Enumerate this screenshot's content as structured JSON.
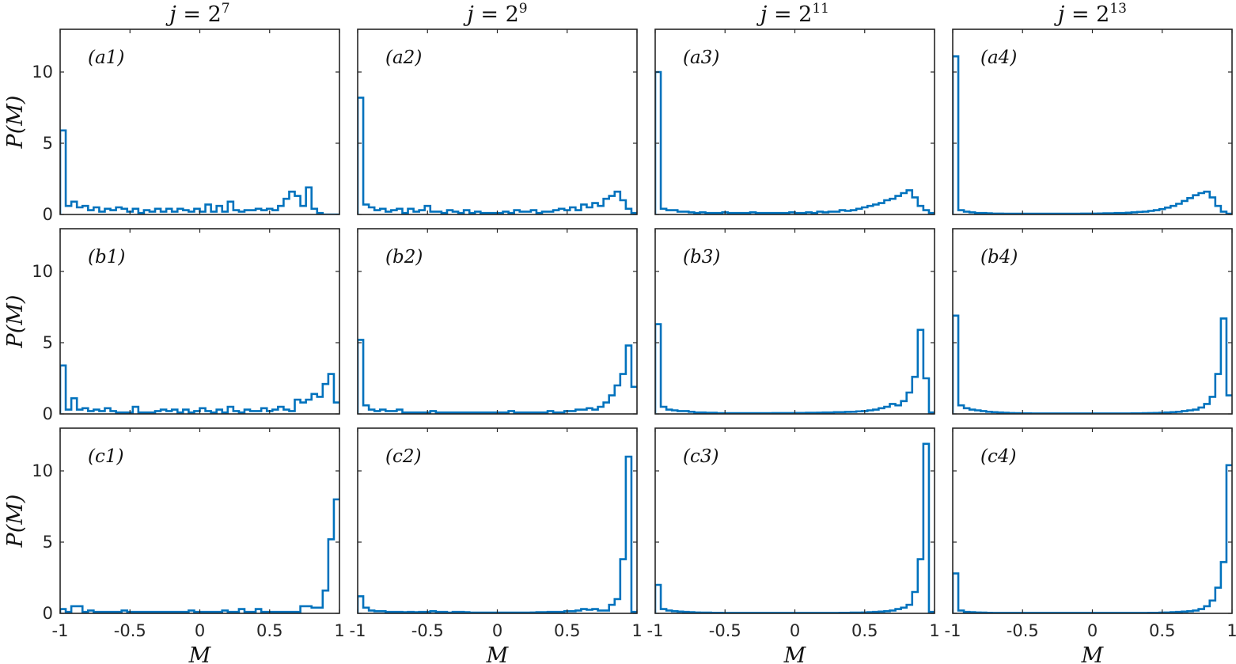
{
  "figure": {
    "column_titles": [
      {
        "base": "j = 2",
        "exponent": "7"
      },
      {
        "base": "j = 2",
        "exponent": "9"
      },
      {
        "base": "j = 2",
        "exponent": "11"
      },
      {
        "base": "j = 2",
        "exponent": "13"
      }
    ],
    "ylabel": "P(M)",
    "xlabel": "M",
    "x_tick_labels": [
      "-1",
      "-0.5",
      "0",
      "0.5",
      "1"
    ],
    "y_tick_labels": [
      "0",
      "5",
      "10"
    ],
    "line_color": "#0072BD"
  },
  "chart_data": [
    {
      "type": "step",
      "panel": "(a1)",
      "row": 0,
      "col": 0,
      "xlim": [
        -1,
        1
      ],
      "ylim": [
        0,
        13
      ],
      "x_start": -1,
      "bin_width": 0.04,
      "values": [
        5.9,
        0.6,
        0.9,
        0.5,
        0.6,
        0.3,
        0.5,
        0.2,
        0.4,
        0.3,
        0.5,
        0.4,
        0.2,
        0.4,
        0.1,
        0.3,
        0.2,
        0.4,
        0.2,
        0.4,
        0.2,
        0.4,
        0.3,
        0.2,
        0.4,
        0.2,
        0.7,
        0.2,
        0.6,
        0.2,
        0.9,
        0.3,
        0.2,
        0.3,
        0.3,
        0.4,
        0.3,
        0.4,
        0.3,
        0.6,
        1.1,
        1.6,
        1.3,
        0.6,
        1.9,
        0.4,
        0.1,
        0,
        0,
        0
      ]
    },
    {
      "type": "step",
      "panel": "(a2)",
      "row": 0,
      "col": 1,
      "xlim": [
        -1,
        1
      ],
      "ylim": [
        0,
        13
      ],
      "x_start": -1,
      "bin_width": 0.04,
      "values": [
        8.2,
        0.7,
        0.5,
        0.3,
        0.4,
        0.2,
        0.3,
        0.4,
        0.1,
        0.4,
        0.2,
        0.3,
        0.6,
        0.2,
        0.2,
        0.1,
        0.3,
        0.2,
        0.1,
        0.3,
        0.1,
        0.2,
        0.1,
        0.1,
        0.1,
        0.1,
        0.2,
        0.1,
        0.3,
        0.2,
        0.2,
        0.3,
        0.1,
        0.2,
        0.2,
        0.3,
        0.4,
        0.3,
        0.5,
        0.3,
        0.7,
        0.5,
        0.8,
        0.6,
        1.1,
        1.3,
        1.6,
        1.0,
        0.4,
        0.1
      ]
    },
    {
      "type": "step",
      "panel": "(a3)",
      "row": 0,
      "col": 2,
      "xlim": [
        -1,
        1
      ],
      "ylim": [
        0,
        13
      ],
      "x_start": -1,
      "bin_width": 0.04,
      "values": [
        10.0,
        0.4,
        0.3,
        0.3,
        0.2,
        0.2,
        0.15,
        0.1,
        0.15,
        0.1,
        0.1,
        0.1,
        0.15,
        0.1,
        0.1,
        0.1,
        0.1,
        0.15,
        0.1,
        0.1,
        0.1,
        0.1,
        0.1,
        0.1,
        0.15,
        0.1,
        0.1,
        0.15,
        0.1,
        0.2,
        0.15,
        0.2,
        0.2,
        0.3,
        0.25,
        0.3,
        0.4,
        0.5,
        0.6,
        0.7,
        0.8,
        1.0,
        1.1,
        1.3,
        1.5,
        1.7,
        1.2,
        0.6,
        0.3,
        0.1
      ]
    },
    {
      "type": "step",
      "panel": "(a4)",
      "row": 0,
      "col": 3,
      "xlim": [
        -1,
        1
      ],
      "ylim": [
        0,
        13
      ],
      "x_start": -1,
      "bin_width": 0.04,
      "values": [
        11.1,
        0.3,
        0.2,
        0.15,
        0.1,
        0.1,
        0.08,
        0.06,
        0.06,
        0.05,
        0.05,
        0.05,
        0.05,
        0.05,
        0.05,
        0.05,
        0.05,
        0.05,
        0.05,
        0.05,
        0.05,
        0.05,
        0.05,
        0.06,
        0.06,
        0.06,
        0.07,
        0.08,
        0.08,
        0.1,
        0.1,
        0.12,
        0.15,
        0.18,
        0.2,
        0.25,
        0.3,
        0.38,
        0.48,
        0.6,
        0.75,
        0.95,
        1.15,
        1.35,
        1.5,
        1.6,
        1.2,
        0.6,
        0.2,
        0.05
      ]
    },
    {
      "type": "step",
      "panel": "(b1)",
      "row": 1,
      "col": 0,
      "xlim": [
        -1,
        1
      ],
      "ylim": [
        0,
        13
      ],
      "x_start": -1,
      "bin_width": 0.04,
      "values": [
        3.4,
        0.3,
        1.1,
        0.3,
        0.4,
        0.2,
        0.3,
        0.2,
        0.4,
        0.2,
        0.1,
        0.1,
        0.1,
        0.5,
        0.1,
        0.1,
        0.1,
        0.2,
        0.3,
        0.2,
        0.3,
        0.1,
        0.3,
        0.1,
        0.2,
        0.4,
        0.2,
        0.1,
        0.3,
        0.1,
        0.5,
        0.2,
        0.1,
        0.3,
        0.2,
        0.2,
        0.4,
        0.2,
        0.3,
        0.5,
        0.3,
        0.2,
        1.0,
        0.8,
        1.0,
        1.4,
        1.2,
        2.1,
        2.8,
        0.8
      ]
    },
    {
      "type": "step",
      "panel": "(b2)",
      "row": 1,
      "col": 1,
      "xlim": [
        -1,
        1
      ],
      "ylim": [
        0,
        13
      ],
      "x_start": -1,
      "bin_width": 0.04,
      "values": [
        5.2,
        0.6,
        0.3,
        0.2,
        0.3,
        0.2,
        0.2,
        0.3,
        0.1,
        0.1,
        0.1,
        0.1,
        0.1,
        0.2,
        0.1,
        0.1,
        0.1,
        0.1,
        0.1,
        0.1,
        0.1,
        0.1,
        0.1,
        0.1,
        0.1,
        0.1,
        0.1,
        0.2,
        0.1,
        0.1,
        0.1,
        0.1,
        0.1,
        0.1,
        0.2,
        0.1,
        0.1,
        0.2,
        0.2,
        0.3,
        0.3,
        0.4,
        0.3,
        0.5,
        0.8,
        1.3,
        2.0,
        2.8,
        4.8,
        1.9
      ]
    },
    {
      "type": "step",
      "panel": "(b3)",
      "row": 1,
      "col": 2,
      "xlim": [
        -1,
        1
      ],
      "ylim": [
        0,
        13
      ],
      "x_start": -1,
      "bin_width": 0.04,
      "values": [
        6.3,
        0.5,
        0.3,
        0.25,
        0.2,
        0.2,
        0.15,
        0.1,
        0.1,
        0.08,
        0.08,
        0.05,
        0.05,
        0.05,
        0.05,
        0.05,
        0.05,
        0.05,
        0.05,
        0.05,
        0.05,
        0.06,
        0.06,
        0.06,
        0.06,
        0.07,
        0.07,
        0.08,
        0.08,
        0.09,
        0.1,
        0.1,
        0.12,
        0.12,
        0.14,
        0.15,
        0.18,
        0.2,
        0.25,
        0.3,
        0.4,
        0.5,
        0.7,
        0.6,
        0.9,
        1.5,
        2.6,
        5.9,
        2.5,
        0.1
      ]
    },
    {
      "type": "step",
      "panel": "(b4)",
      "row": 1,
      "col": 3,
      "xlim": [
        -1,
        1
      ],
      "ylim": [
        0,
        13
      ],
      "x_start": -1,
      "bin_width": 0.04,
      "values": [
        6.9,
        0.6,
        0.4,
        0.3,
        0.25,
        0.2,
        0.15,
        0.12,
        0.1,
        0.08,
        0.06,
        0.05,
        0.04,
        0.04,
        0.03,
        0.03,
        0.03,
        0.03,
        0.03,
        0.03,
        0.03,
        0.03,
        0.03,
        0.03,
        0.03,
        0.03,
        0.03,
        0.03,
        0.03,
        0.03,
        0.03,
        0.03,
        0.04,
        0.04,
        0.05,
        0.06,
        0.07,
        0.08,
        0.1,
        0.12,
        0.15,
        0.2,
        0.25,
        0.3,
        0.45,
        0.7,
        1.2,
        2.8,
        6.7,
        1.3
      ]
    },
    {
      "type": "step",
      "panel": "(c1)",
      "row": 2,
      "col": 0,
      "xlim": [
        -1,
        1
      ],
      "ylim": [
        0,
        13
      ],
      "x_start": -1,
      "bin_width": 0.04,
      "values": [
        0.3,
        0.1,
        0.5,
        0.5,
        0.1,
        0.2,
        0.1,
        0.1,
        0.1,
        0.1,
        0.1,
        0.2,
        0.1,
        0.1,
        0.1,
        0.1,
        0.1,
        0.1,
        0.1,
        0.1,
        0.1,
        0.1,
        0.1,
        0.2,
        0.1,
        0.1,
        0.1,
        0.1,
        0.1,
        0.2,
        0.1,
        0.1,
        0.3,
        0.1,
        0.1,
        0.3,
        0.1,
        0.1,
        0.1,
        0.1,
        0.1,
        0.1,
        0.1,
        0.5,
        0.5,
        0.4,
        0.4,
        1.6,
        5.2,
        8.0
      ]
    },
    {
      "type": "step",
      "panel": "(c2)",
      "row": 2,
      "col": 1,
      "xlim": [
        -1,
        1
      ],
      "ylim": [
        0,
        13
      ],
      "x_start": -1,
      "bin_width": 0.04,
      "values": [
        1.2,
        0.4,
        0.2,
        0.15,
        0.15,
        0.1,
        0.1,
        0.1,
        0.08,
        0.1,
        0.08,
        0.1,
        0.1,
        0.15,
        0.1,
        0.1,
        0.05,
        0.1,
        0.1,
        0.08,
        0.05,
        0.05,
        0.05,
        0.05,
        0.05,
        0.05,
        0.05,
        0.05,
        0.05,
        0.05,
        0.05,
        0.06,
        0.08,
        0.08,
        0.1,
        0.1,
        0.1,
        0.15,
        0.15,
        0.2,
        0.3,
        0.25,
        0.3,
        0.2,
        0.2,
        0.6,
        1.0,
        3.8,
        11.0,
        0.1
      ]
    },
    {
      "type": "step",
      "panel": "(c3)",
      "row": 2,
      "col": 2,
      "xlim": [
        -1,
        1
      ],
      "ylim": [
        0,
        13
      ],
      "x_start": -1,
      "bin_width": 0.04,
      "values": [
        2.0,
        0.3,
        0.2,
        0.15,
        0.12,
        0.1,
        0.08,
        0.06,
        0.05,
        0.05,
        0.04,
        0.04,
        0.03,
        0.03,
        0.03,
        0.03,
        0.03,
        0.03,
        0.03,
        0.03,
        0.03,
        0.03,
        0.03,
        0.03,
        0.03,
        0.03,
        0.03,
        0.03,
        0.03,
        0.03,
        0.03,
        0.03,
        0.03,
        0.04,
        0.04,
        0.05,
        0.05,
        0.06,
        0.08,
        0.1,
        0.12,
        0.15,
        0.2,
        0.3,
        0.4,
        0.6,
        1.5,
        3.8,
        11.9,
        0.1
      ]
    },
    {
      "type": "step",
      "panel": "(c4)",
      "row": 2,
      "col": 3,
      "xlim": [
        -1,
        1
      ],
      "ylim": [
        0,
        13
      ],
      "x_start": -1,
      "bin_width": 0.04,
      "values": [
        2.8,
        0.2,
        0.1,
        0.08,
        0.06,
        0.05,
        0.04,
        0.03,
        0.03,
        0.03,
        0.03,
        0.03,
        0.03,
        0.03,
        0.03,
        0.03,
        0.03,
        0.03,
        0.03,
        0.03,
        0.03,
        0.03,
        0.03,
        0.03,
        0.03,
        0.03,
        0.03,
        0.03,
        0.03,
        0.03,
        0.03,
        0.03,
        0.03,
        0.03,
        0.03,
        0.04,
        0.04,
        0.05,
        0.06,
        0.08,
        0.1,
        0.12,
        0.15,
        0.2,
        0.3,
        0.5,
        0.9,
        1.8,
        3.6,
        10.4
      ]
    }
  ]
}
